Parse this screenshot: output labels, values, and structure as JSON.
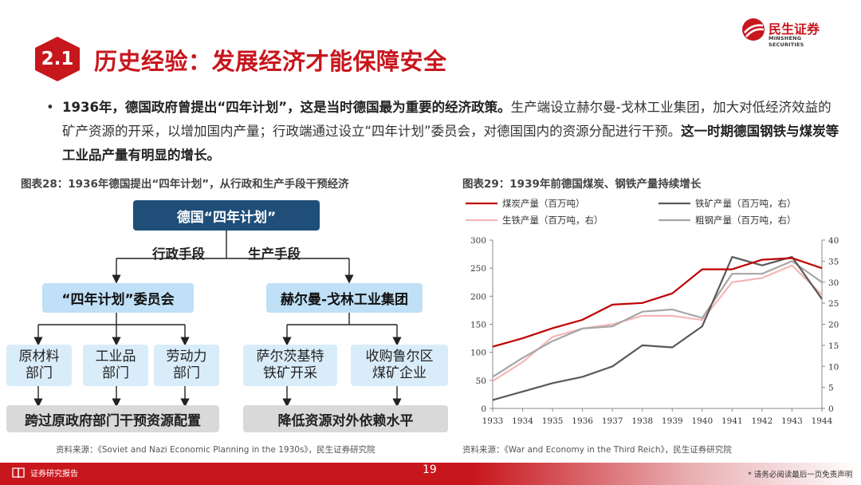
{
  "header": {
    "section_number": "2.1",
    "title": "历史经验：发展经济才能保障安全",
    "logo_cn": "民生证券",
    "logo_en": "MINSHENG SECURITIES"
  },
  "bullet": {
    "dot": "•",
    "part1_bold": "1936年，德国政府曾提出“四年计划”，这是当时德国最为重要的经济政策。",
    "part2": "生产端设立赫尔曼-戈林工业集团，加大对低经济效益的矿产资源的开采，以增加国内产量；行政端通过设立“四年计划”委员会，对德国国内的资源分配进行干预。",
    "part3_bold": "这一时期德国钢铁与煤炭等工业品产量有明显的增长。"
  },
  "figure28": {
    "title": "图表28：1936年德国提出“四年计划”，从行政和生产手段干预经济",
    "top_box": "德国“四年计划”",
    "label_admin": "行政手段",
    "label_prod": "生产手段",
    "left_box": "“四年计划”委员会",
    "right_box": "赫尔曼-戈林工业集团",
    "sub1_l1": "原材料",
    "sub1_l2": "部门",
    "sub2_l1": "工业品",
    "sub2_l2": "部门",
    "sub3_l1": "劳动力",
    "sub3_l2": "部门",
    "sub4_l1": "萨尔茨基特",
    "sub4_l2": "铁矿开采",
    "sub5_l1": "收购鲁尔区",
    "sub5_l2": "煤矿企业",
    "bottom_left": "跨过原政府部门干预资源配置",
    "bottom_right": "降低资源对外依赖水平",
    "source": "资料来源：《Soviet and Nazi Economic Planning in the 1930s》，民生证券研究院"
  },
  "figure29": {
    "title": "图表29：1939年前德国煤炭、钢铁产量持续增长",
    "source": "资料来源：《War and Economy in the Third Reich》，民生证券研究院"
  },
  "chart_data": {
    "type": "line",
    "x": [
      "1933",
      "1934",
      "1935",
      "1936",
      "1937",
      "1938",
      "1939",
      "1940",
      "1941",
      "1942",
      "1943",
      "1944"
    ],
    "y_left_lim": [
      0,
      300
    ],
    "y_left_ticks": [
      "0",
      "50",
      "100",
      "150",
      "200",
      "250",
      "300"
    ],
    "y_right_lim": [
      0,
      40
    ],
    "y_right_ticks": [
      "0",
      "5",
      "10",
      "15",
      "20",
      "25",
      "30",
      "35",
      "40"
    ],
    "grid": false,
    "legend_position": "top",
    "series": [
      {
        "name": "煤炭产量（百万吨）",
        "axis": "left",
        "color": "#c00000",
        "values": [
          110,
          125,
          143,
          158,
          185,
          188,
          205,
          248,
          248,
          265,
          268,
          250
        ]
      },
      {
        "name": "铁矿产量（百万吨，右）",
        "axis": "right",
        "color": "#595959",
        "values": [
          2,
          4,
          6,
          7.5,
          10,
          15,
          14.5,
          19.5,
          36,
          34,
          36,
          26
        ]
      },
      {
        "name": "生铁产量（百万吨，右）",
        "axis": "right",
        "color": "#f4b6b6",
        "values": [
          6.5,
          11,
          17,
          19,
          20,
          22,
          22,
          21,
          30,
          31,
          34,
          27
        ]
      },
      {
        "name": "粗钢产量（百万吨，右）",
        "axis": "right",
        "color": "#a6a6a6",
        "values": [
          7.5,
          12,
          16,
          19,
          19.5,
          23,
          23.5,
          21.5,
          32,
          32,
          35,
          30
        ]
      }
    ]
  },
  "footer": {
    "label": "证券研究报告",
    "page": "19",
    "disclaimer": "* 请务必阅读最后一页免责声明"
  }
}
